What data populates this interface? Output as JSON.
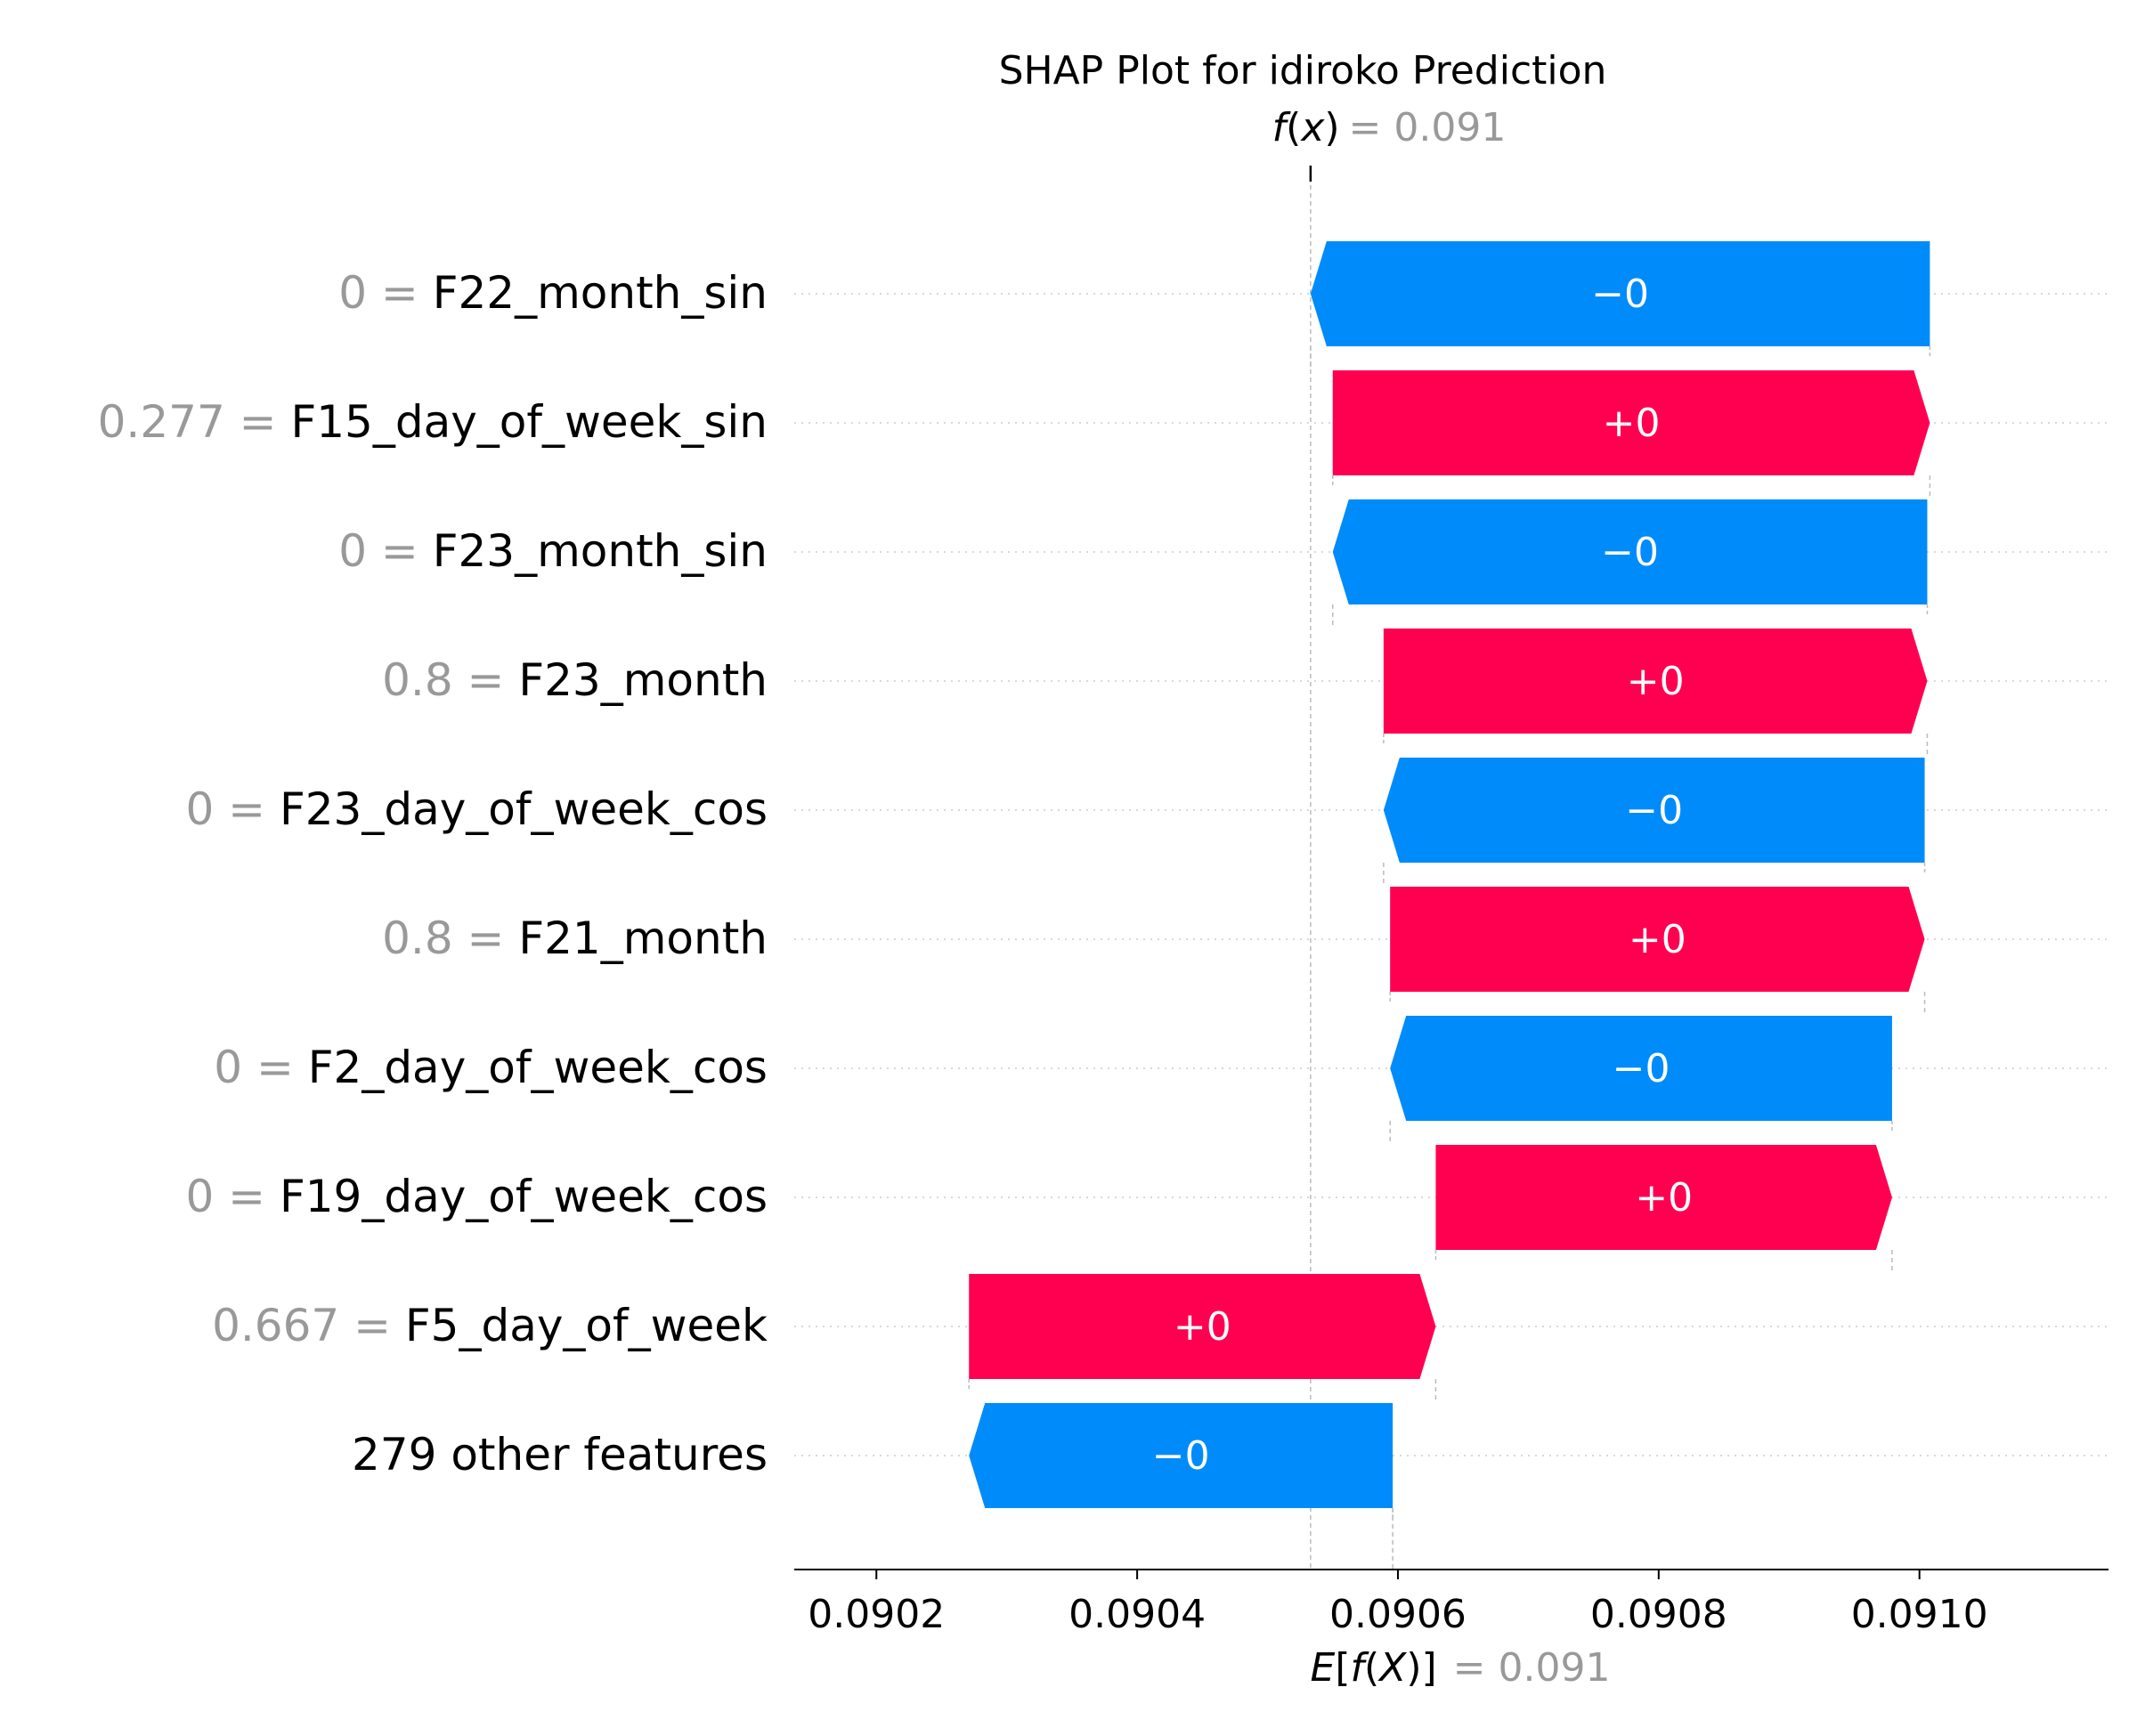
{
  "chart_data": {
    "type": "waterfall",
    "title": "SHAP Plot for idiroko Prediction",
    "fx": {
      "label_prefix": "f",
      "label_var": "x",
      "value": "= 0.091",
      "x": 0.090533
    },
    "efx": {
      "label_prefix": "E",
      "label_inner_f": "f",
      "label_inner_var": "X",
      "value": "= 0.091",
      "x": 0.090596
    },
    "xlim": [
      0.090137,
      0.091145
    ],
    "xticks": [
      {
        "v": 0.0902,
        "label": "0.0902"
      },
      {
        "v": 0.0904,
        "label": "0.0904"
      },
      {
        "v": 0.0906,
        "label": "0.0906"
      },
      {
        "v": 0.0908,
        "label": "0.0908"
      },
      {
        "v": 0.091,
        "label": "0.0910"
      }
    ],
    "rows": [
      {
        "value": "0",
        "feature": "F22_month_sin",
        "start": 0.091008,
        "end": 0.090533,
        "label": "−0"
      },
      {
        "value": "0.277",
        "feature": "F15_day_of_week_sin",
        "start": 0.09055,
        "end": 0.091008,
        "label": "+0"
      },
      {
        "value": "0",
        "feature": "F23_month_sin",
        "start": 0.091006,
        "end": 0.09055,
        "label": "−0"
      },
      {
        "value": "0.8",
        "feature": "F23_month",
        "start": 0.090589,
        "end": 0.091006,
        "label": "+0"
      },
      {
        "value": "0",
        "feature": "F23_day_of_week_cos",
        "start": 0.091004,
        "end": 0.090589,
        "label": "−0"
      },
      {
        "value": "0.8",
        "feature": "F21_month",
        "start": 0.090594,
        "end": 0.091004,
        "label": "+0"
      },
      {
        "value": "0",
        "feature": "F2_day_of_week_cos",
        "start": 0.090979,
        "end": 0.090594,
        "label": "−0"
      },
      {
        "value": "0",
        "feature": "F19_day_of_week_cos",
        "start": 0.090629,
        "end": 0.090979,
        "label": "+0"
      },
      {
        "value": "0.667",
        "feature": "F5_day_of_week",
        "start": 0.090271,
        "end": 0.090629,
        "label": "+0"
      },
      {
        "value": "",
        "feature": "279 other features",
        "start": 0.090596,
        "end": 0.090271,
        "label": "−0"
      }
    ],
    "colors": {
      "positive": "#ff0051",
      "negative": "#008bfb",
      "muted": "#999999",
      "text": "#000000"
    }
  }
}
